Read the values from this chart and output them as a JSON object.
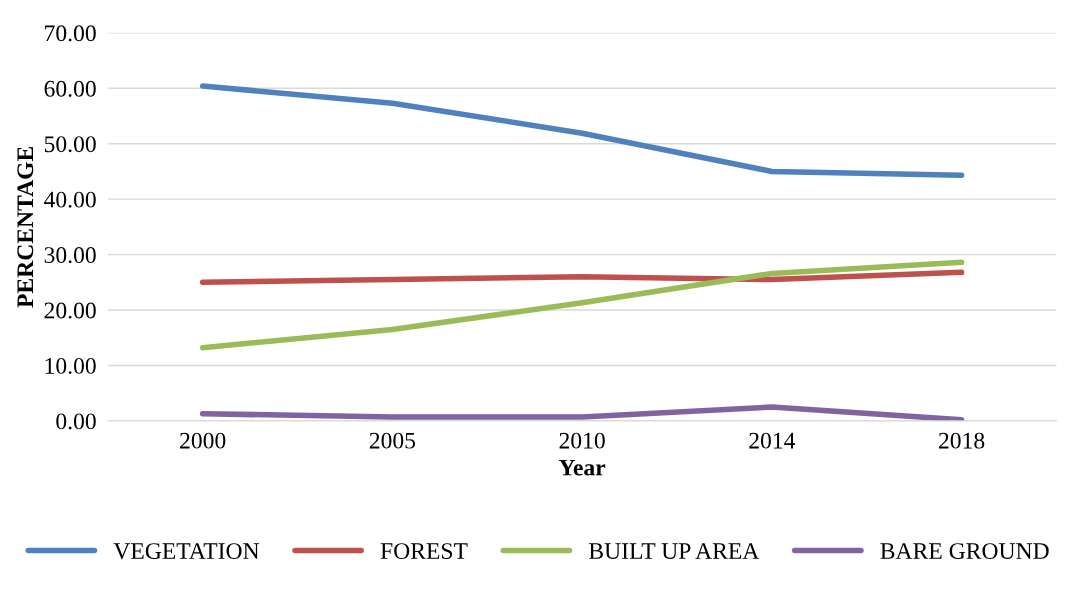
{
  "chart_data": {
    "type": "line",
    "xlabel": "Year",
    "ylabel": "PERCENTAGE",
    "categories": [
      "2000",
      "2005",
      "2010",
      "2014",
      "2018"
    ],
    "series": [
      {
        "name": "VEGETATION",
        "color": "#4f81bd",
        "values": [
          60.4,
          57.3,
          51.9,
          45.0,
          44.3
        ]
      },
      {
        "name": "FOREST",
        "color": "#c0504d",
        "values": [
          25.0,
          25.5,
          26.0,
          25.5,
          26.8
        ]
      },
      {
        "name": "BUILT UP AREA",
        "color": "#9bbb59",
        "values": [
          13.2,
          16.5,
          21.3,
          26.6,
          28.6
        ]
      },
      {
        "name": "BARE GROUND",
        "color": "#8064a2",
        "values": [
          1.3,
          0.7,
          0.7,
          2.5,
          0.2
        ]
      }
    ],
    "ylim": [
      0,
      70
    ],
    "yticks": [
      {
        "value": 0,
        "label": "0.00"
      },
      {
        "value": 10,
        "label": "10.00"
      },
      {
        "value": 20,
        "label": "20.00"
      },
      {
        "value": 30,
        "label": "30.00"
      },
      {
        "value": 40,
        "label": "40.00"
      },
      {
        "value": 50,
        "label": "50.00"
      },
      {
        "value": 60,
        "label": "60.00"
      },
      {
        "value": 70,
        "label": "70.00"
      }
    ],
    "grid": "y",
    "legend": "bottom",
    "marker": "none",
    "line_style": "solid"
  }
}
